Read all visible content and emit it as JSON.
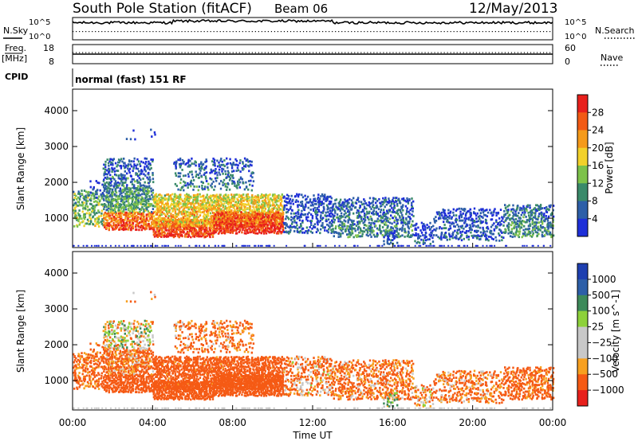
{
  "header": {
    "station": "South Pole Station (fitACF)",
    "beam": "Beam 06",
    "date": "12/May/2013"
  },
  "strips": {
    "nsky_label": "N.Sky",
    "nsearch_label": "N.Search",
    "freq_label": "Freq.",
    "freq_unit": "[MHz]",
    "nave_label": "Nave",
    "cpid_label": "CPID",
    "cpid_text": "normal (fast) 151 RF",
    "noise_ticks": [
      "10^5",
      "10^0"
    ],
    "freq_ticks": [
      "18",
      "8"
    ],
    "nave_ticks": [
      "60",
      "0"
    ]
  },
  "colors": {
    "power": [
      "#1e2fd8",
      "#2d5fa8",
      "#3a8a6a",
      "#7dc24a",
      "#f2d12a",
      "#f59a1a",
      "#f25a14",
      "#e8201c"
    ],
    "velocity": [
      "#e8201c",
      "#f55a14",
      "#f7a020",
      "#c8c8c8",
      "#c8c8c8",
      "#8dd13a",
      "#3d8a5a",
      "#2d5fa8",
      "#1e3fb0"
    ]
  },
  "chart_data": [
    {
      "type": "heatmap",
      "title": "",
      "xlabel": "Time UT",
      "ylabel": "Slant Range [km]",
      "x_ticks": [
        "00:00",
        "04:00",
        "08:00",
        "12:00",
        "16:00",
        "20:00",
        "00:00"
      ],
      "y_ticks": [
        "1000",
        "2000",
        "3000",
        "4000"
      ],
      "xlim": [
        0,
        24
      ],
      "ylim": [
        180,
        4600
      ],
      "colorbar": {
        "label": "Power [dB]",
        "ticks": [
          "4",
          "8",
          "12",
          "16",
          "20",
          "24",
          "28"
        ],
        "range": [
          0,
          30
        ]
      },
      "features": [
        {
          "time_range": [
            0.0,
            1.5
          ],
          "range_km": [
            800,
            1800
          ],
          "peak_db": 22
        },
        {
          "time_range": [
            1.5,
            4.0
          ],
          "range_km": [
            800,
            2700
          ],
          "peak_db": 28
        },
        {
          "time_range": [
            4.0,
            10.5
          ],
          "range_km": [
            500,
            1800
          ],
          "peak_db": 29
        },
        {
          "time_range": [
            10.5,
            18.0
          ],
          "range_km": [
            500,
            1800
          ],
          "peak_db": 14
        },
        {
          "time_range": [
            18.0,
            24.0
          ],
          "range_km": [
            400,
            1400
          ],
          "peak_db": 10
        }
      ]
    },
    {
      "type": "heatmap",
      "title": "",
      "xlabel": "Time UT",
      "ylabel": "Slant Range [km]",
      "x_ticks": [
        "00:00",
        "04:00",
        "08:00",
        "12:00",
        "16:00",
        "20:00",
        "00:00"
      ],
      "y_ticks": [
        "1000",
        "2000",
        "3000",
        "4000"
      ],
      "xlim": [
        0,
        24
      ],
      "ylim": [
        180,
        4600
      ],
      "colorbar": {
        "label": "Velocity [m s^-1]",
        "ticks": [
          "1000",
          "500",
          "100",
          "25",
          "−25",
          "−100",
          "−500",
          "−1000"
        ],
        "range": [
          -1200,
          1200
        ]
      },
      "features": [
        {
          "time_range": [
            0.0,
            10.5
          ],
          "range_km": [
            500,
            1800
          ],
          "typical_velocity": -200
        },
        {
          "time_range": [
            1.5,
            4.0
          ],
          "range_km": [
            1600,
            2500
          ],
          "typical_velocity": 0
        },
        {
          "time_range": [
            10.5,
            18.0
          ],
          "range_km": [
            600,
            1500
          ],
          "typical_velocity": -150
        },
        {
          "time_range": [
            18.0,
            24.0
          ],
          "range_km": [
            500,
            1300
          ],
          "typical_velocity": -150
        }
      ]
    }
  ]
}
